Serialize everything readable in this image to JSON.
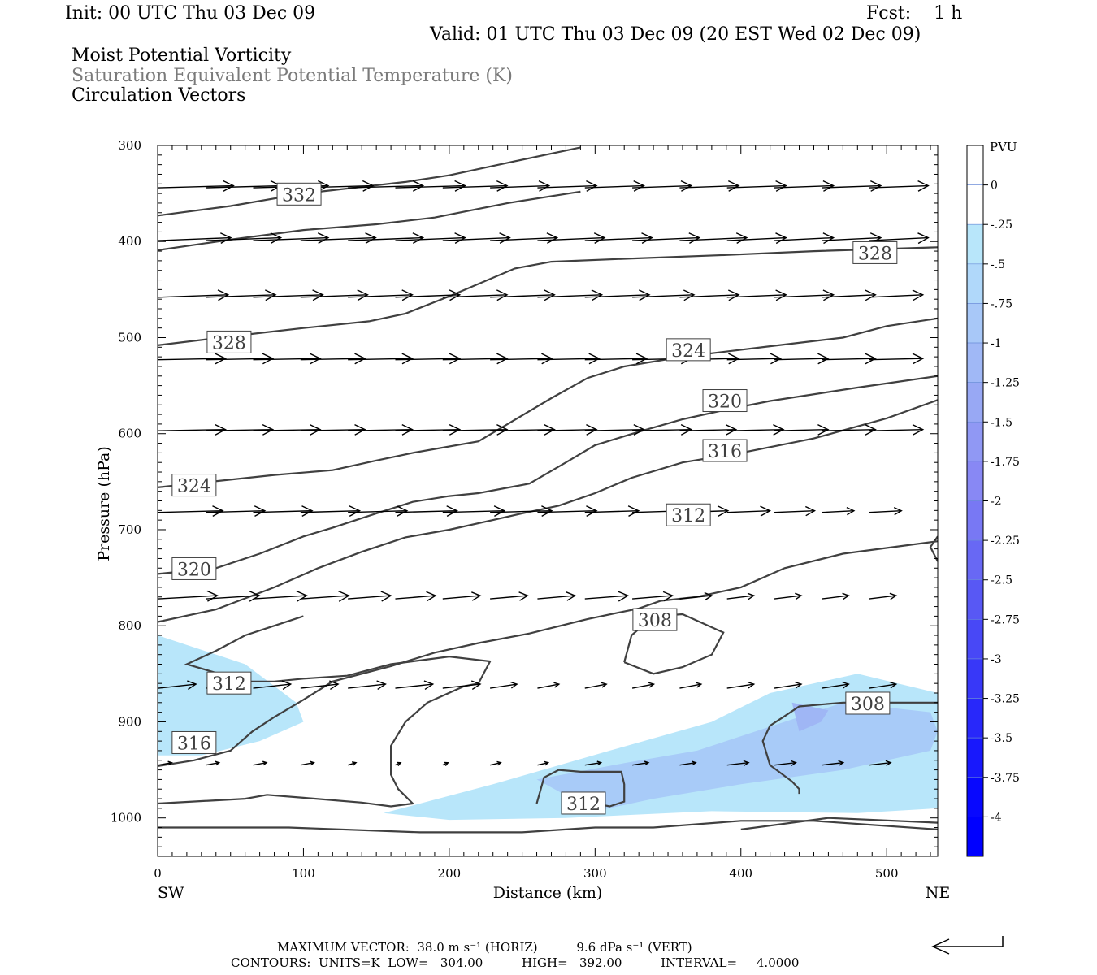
{
  "header": {
    "init": "Init: 00 UTC Thu 03 Dec 09",
    "fcst": "Fcst:    1 h",
    "valid": "Valid: 01 UTC Thu 03 Dec 09 (20 EST Wed 02 Dec 09)",
    "title1": "Moist Potential Vorticity",
    "title2": "Saturation Equivalent Potential Temperature (K)",
    "title3": "Circulation Vectors"
  },
  "footer": {
    "max_vector": "MAXIMUM VECTOR:  38.0 m s⁻¹ (HORIZ)          9.6 dPa s⁻¹ (VERT)",
    "contours": "CONTOURS:  UNITS=K  LOW=   304.00          HIGH=   392.00          INTERVAL=     4.0000"
  },
  "chart_data": {
    "type": "contour",
    "xlabel": "Distance (km)",
    "ylabel": "Pressure (hPa)",
    "x_left_label": "SW",
    "x_right_label": "NE",
    "xlim": [
      0,
      535
    ],
    "ylim": [
      1040,
      300
    ],
    "xticks": [
      0,
      100,
      200,
      300,
      400,
      500
    ],
    "yticks": [
      300,
      400,
      500,
      600,
      700,
      800,
      900,
      1000
    ],
    "colorbar": {
      "title": "PVU",
      "levels": [
        "0",
        "-.25",
        "-.5",
        "-.75",
        "-1",
        "-1.25",
        "-1.5",
        "-1.75",
        "-2",
        "-2.25",
        "-2.5",
        "-2.75",
        "-3",
        "-3.25",
        "-3.5",
        "-3.75",
        "-4"
      ],
      "colors": [
        "#ffffff",
        "#ffffff",
        "#b8e6fa",
        "#b0d8fa",
        "#a8c8f8",
        "#a0b8f6",
        "#98a8f4",
        "#9098f4",
        "#8888f4",
        "#7878f4",
        "#6868f4",
        "#5858f4",
        "#4848f6",
        "#3838f8",
        "#2828fa",
        "#1818fc",
        "#0808fe",
        "#0000ff"
      ]
    },
    "contour_labels": [
      {
        "label": "332",
        "x": 97,
        "p": 351
      },
      {
        "label": "328",
        "x": 492,
        "p": 412
      },
      {
        "label": "328",
        "x": 49,
        "p": 505
      },
      {
        "label": "324",
        "x": 364,
        "p": 513
      },
      {
        "label": "320",
        "x": 389,
        "p": 566
      },
      {
        "label": "316",
        "x": 389,
        "p": 618
      },
      {
        "label": "324",
        "x": 25,
        "p": 654
      },
      {
        "label": "312",
        "x": 364,
        "p": 685
      },
      {
        "label": "320",
        "x": 25,
        "p": 741
      },
      {
        "label": "308",
        "x": 341,
        "p": 794
      },
      {
        "label": "312",
        "x": 49,
        "p": 860
      },
      {
        "label": "308",
        "x": 487,
        "p": 881
      },
      {
        "label": "316",
        "x": 25,
        "p": 922
      },
      {
        "label": "312",
        "x": 292,
        "p": 985
      }
    ],
    "contours": [
      [
        [
          0,
          373
        ],
        [
          50,
          363
        ],
        [
          100,
          350
        ],
        [
          170,
          338
        ],
        [
          200,
          331
        ],
        [
          240,
          318
        ],
        [
          290,
          302
        ]
      ],
      [
        [
          0,
          409
        ],
        [
          50,
          398
        ],
        [
          100,
          388
        ],
        [
          150,
          382
        ],
        [
          190,
          375
        ],
        [
          240,
          360
        ],
        [
          290,
          348
        ]
      ],
      [
        [
          0,
          508
        ],
        [
          60,
          497
        ],
        [
          100,
          490
        ],
        [
          145,
          483
        ],
        [
          170,
          475
        ],
        [
          200,
          457
        ],
        [
          245,
          428
        ],
        [
          270,
          421
        ],
        [
          320,
          418
        ],
        [
          390,
          414
        ],
        [
          450,
          410
        ],
        [
          535,
          406
        ]
      ],
      [
        [
          0,
          656
        ],
        [
          80,
          643
        ],
        [
          120,
          638
        ],
        [
          150,
          628
        ],
        [
          175,
          620
        ],
        [
          220,
          608
        ],
        [
          240,
          590
        ],
        [
          270,
          563
        ],
        [
          295,
          542
        ],
        [
          320,
          530
        ],
        [
          360,
          520
        ],
        [
          420,
          509
        ],
        [
          470,
          500
        ],
        [
          500,
          488
        ],
        [
          535,
          480
        ]
      ],
      [
        [
          0,
          746
        ],
        [
          40,
          740
        ],
        [
          70,
          725
        ],
        [
          100,
          707
        ],
        [
          120,
          698
        ],
        [
          150,
          683
        ],
        [
          175,
          671
        ],
        [
          200,
          665
        ],
        [
          220,
          662
        ],
        [
          255,
          652
        ],
        [
          280,
          630
        ],
        [
          300,
          612
        ],
        [
          330,
          598
        ],
        [
          360,
          585
        ],
        [
          390,
          575
        ],
        [
          420,
          566
        ],
        [
          480,
          552
        ],
        [
          535,
          540
        ]
      ],
      [
        [
          0,
          796
        ],
        [
          40,
          783
        ],
        [
          80,
          760
        ],
        [
          110,
          740
        ],
        [
          140,
          723
        ],
        [
          170,
          708
        ],
        [
          200,
          700
        ],
        [
          230,
          690
        ],
        [
          250,
          683
        ],
        [
          275,
          675
        ],
        [
          300,
          662
        ],
        [
          325,
          646
        ],
        [
          360,
          630
        ],
        [
          400,
          620
        ],
        [
          450,
          605
        ],
        [
          500,
          584
        ],
        [
          535,
          565
        ]
      ],
      [
        [
          0,
          946
        ],
        [
          25,
          940
        ],
        [
          50,
          930
        ],
        [
          65,
          910
        ],
        [
          80,
          895
        ],
        [
          100,
          877
        ],
        [
          120,
          858
        ],
        [
          160,
          842
        ],
        [
          190,
          828
        ],
        [
          220,
          818
        ],
        [
          255,
          808
        ],
        [
          295,
          793
        ],
        [
          330,
          782
        ],
        [
          345,
          774
        ],
        [
          370,
          770
        ],
        [
          400,
          760
        ],
        [
          430,
          740
        ],
        [
          470,
          725
        ],
        [
          535,
          712
        ]
      ],
      [
        [
          0,
          985
        ],
        [
          60,
          980
        ],
        [
          75,
          976
        ],
        [
          100,
          979
        ],
        [
          140,
          984
        ],
        [
          160,
          988
        ],
        [
          175,
          985
        ],
        [
          165,
          970
        ],
        [
          160,
          955
        ],
        [
          160,
          925
        ],
        [
          170,
          900
        ],
        [
          185,
          880
        ],
        [
          210,
          863
        ],
        [
          220,
          860
        ],
        [
          228,
          837
        ],
        [
          200,
          832
        ],
        [
          160,
          840
        ],
        [
          130,
          852
        ],
        [
          100,
          855
        ],
        [
          80,
          858
        ],
        [
          60,
          858
        ],
        [
          20,
          840
        ],
        [
          40,
          826
        ],
        [
          60,
          810
        ],
        [
          80,
          800
        ],
        [
          100,
          790
        ]
      ],
      [
        [
          0,
          1010
        ],
        [
          90,
          1010
        ],
        [
          180,
          1015
        ],
        [
          250,
          1015
        ],
        [
          300,
          1010
        ],
        [
          340,
          1010
        ],
        [
          400,
          1003
        ],
        [
          450,
          1003
        ],
        [
          535,
          1012
        ]
      ],
      [
        [
          320,
          838
        ],
        [
          325,
          810
        ],
        [
          340,
          790
        ],
        [
          360,
          788
        ],
        [
          388,
          807
        ],
        [
          380,
          830
        ],
        [
          360,
          843
        ],
        [
          340,
          850
        ],
        [
          320,
          838
        ]
      ],
      [
        [
          535,
          880
        ],
        [
          490,
          880
        ],
        [
          470,
          880
        ],
        [
          440,
          884
        ],
        [
          430,
          894
        ],
        [
          420,
          904
        ],
        [
          415,
          920
        ],
        [
          420,
          945
        ],
        [
          435,
          962
        ],
        [
          440,
          970
        ],
        [
          440,
          975
        ]
      ],
      [
        [
          260,
          985
        ],
        [
          265,
          958
        ],
        [
          275,
          950
        ],
        [
          290,
          952
        ],
        [
          318,
          952
        ],
        [
          320,
          965
        ],
        [
          320,
          983
        ],
        [
          310,
          988
        ],
        [
          300,
          985
        ],
        [
          290,
          985
        ]
      ],
      [
        [
          400,
          1012
        ],
        [
          460,
          1000
        ],
        [
          535,
          1005
        ]
      ],
      [
        [
          535,
          707
        ],
        [
          530,
          718
        ],
        [
          535,
          733
        ]
      ]
    ],
    "pv_shading": [
      {
        "level": "-0.25",
        "x": [
          0,
          60,
          95,
          100,
          70,
          30,
          0
        ],
        "p": [
          810,
          840,
          880,
          900,
          920,
          935,
          935
        ]
      },
      {
        "level": "-0.25",
        "x": [
          155,
          230,
          310,
          380,
          420,
          480,
          535,
          535,
          480,
          380,
          280,
          200,
          155
        ],
        "p": [
          995,
          965,
          930,
          900,
          870,
          850,
          870,
          990,
          995,
          993,
          1000,
          1002,
          995
        ]
      },
      {
        "level": "-0.5",
        "x": [
          260,
          320,
          370,
          420,
          470,
          530,
          535,
          530,
          470,
          400,
          340,
          300,
          260
        ],
        "p": [
          960,
          943,
          930,
          905,
          880,
          890,
          910,
          930,
          950,
          965,
          980,
          993,
          960
        ]
      },
      {
        "level": "-0.75",
        "x": [
          435,
          460,
          455,
          440,
          435
        ],
        "p": [
          880,
          888,
          900,
          910,
          880
        ]
      }
    ],
    "circulation_vectors": [
      {
        "x": 0,
        "p": 344,
        "u": 30,
        "w": 0.0
      },
      {
        "x": 0,
        "p": 399,
        "u": 28,
        "w": 0.0
      },
      {
        "x": 0,
        "p": 458,
        "u": 27,
        "w": 0.0
      },
      {
        "x": 0,
        "p": 523,
        "u": 25,
        "w": 0.0
      },
      {
        "x": 0,
        "p": 597,
        "u": 25,
        "w": 0.0
      },
      {
        "x": 0,
        "p": 682,
        "u": 24,
        "w": 0.0
      },
      {
        "x": 0,
        "p": 772,
        "u": 22,
        "w": 0.0
      },
      {
        "x": 0,
        "p": 865,
        "u": 15,
        "w": 0.0
      },
      {
        "x": 0,
        "p": 945,
        "u": 5,
        "w": 0.0
      }
    ]
  }
}
